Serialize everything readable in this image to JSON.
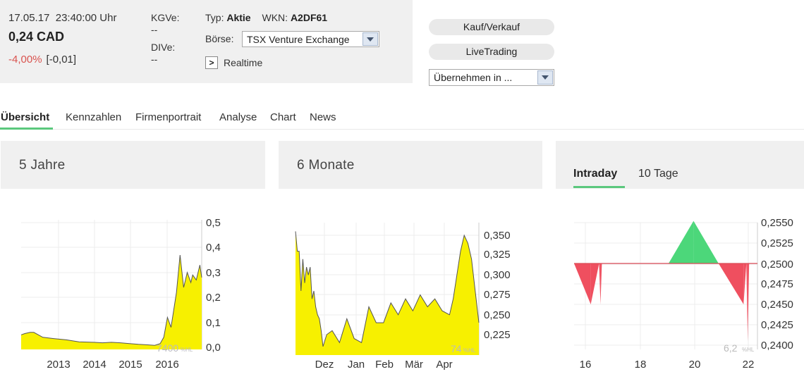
{
  "quote": {
    "date": "17.05.17",
    "time": "23:40:00 Uhr",
    "price": "0,24 CAD",
    "change_pct": "-4,00%",
    "change_abs": "[-0,01]",
    "kgve_label": "KGVe:",
    "kgve_value": "--",
    "dive_label": "DIVe:",
    "dive_value": "--",
    "typ_label": "Typ:",
    "typ_value": "Aktie",
    "wkn_label": "WKN:",
    "wkn_value": "A2DF61",
    "boerse_label": "Börse:",
    "boerse_value": "TSX Venture Exchange",
    "realtime_label": "Realtime"
  },
  "actions": {
    "kauf_label": "Kauf/Verkauf",
    "live_label": "LiveTrading",
    "uebernehmen_label": "Übernehmen in ..."
  },
  "tabs": [
    {
      "label": "Übersicht",
      "active": true
    },
    {
      "label": "Kennzahlen"
    },
    {
      "label": "Firmenportrait"
    },
    {
      "label": "Analyse"
    },
    {
      "label": "Chart"
    },
    {
      "label": "News"
    }
  ],
  "panels": {
    "five_years": {
      "title": "5 Jahre"
    },
    "six_months": {
      "title": "6 Monate"
    },
    "intraday": {
      "tab_intraday": "Intraday",
      "tab_10tage": "10 Tage"
    }
  },
  "colors": {
    "accent": "#5bc87d",
    "area": "#f7f000",
    "negative": "#d9534f",
    "up": "#4cd77a",
    "down": "#ef4f5f"
  },
  "chart_data": [
    {
      "type": "area",
      "title": "5 Jahre",
      "x_ticks": [
        "2013",
        "2014",
        "2015",
        "2016"
      ],
      "y_ticks": [
        "0,5",
        "0,4",
        "0,3",
        "0,2",
        "0,1",
        "0,0"
      ],
      "ylim": [
        0,
        0.5
      ],
      "watermark": "7400",
      "watermark_unit": "%HL",
      "x": [
        0,
        0.02,
        0.05,
        0.07,
        0.12,
        0.18,
        0.25,
        0.32,
        0.4,
        0.45,
        0.5,
        0.55,
        0.6,
        0.65,
        0.7,
        0.74,
        0.77,
        0.79,
        0.81,
        0.83,
        0.86,
        0.88,
        0.9,
        0.92,
        0.94,
        0.95,
        0.97,
        0.99,
        1.0
      ],
      "values": [
        0.05,
        0.055,
        0.06,
        0.06,
        0.04,
        0.035,
        0.03,
        0.022,
        0.02,
        0.018,
        0.02,
        0.018,
        0.015,
        0.012,
        0.01,
        0.008,
        0.015,
        0.04,
        0.12,
        0.08,
        0.22,
        0.37,
        0.24,
        0.3,
        0.26,
        0.29,
        0.27,
        0.33,
        0.28
      ]
    },
    {
      "type": "area",
      "title": "6 Monate",
      "x_ticks": [
        "Dez",
        "Jan",
        "Feb",
        "Mär",
        "Apr"
      ],
      "y_ticks": [
        "0,350",
        "0,325",
        "0,300",
        "0,275",
        "0,250",
        "0,225"
      ],
      "ylim": [
        0.205,
        0.365
      ],
      "watermark": "74",
      "watermark_unit": "%HL",
      "x": [
        0,
        0.01,
        0.02,
        0.03,
        0.04,
        0.05,
        0.06,
        0.07,
        0.08,
        0.09,
        0.1,
        0.11,
        0.12,
        0.13,
        0.14,
        0.15,
        0.17,
        0.2,
        0.24,
        0.28,
        0.32,
        0.36,
        0.4,
        0.44,
        0.48,
        0.52,
        0.56,
        0.6,
        0.64,
        0.68,
        0.72,
        0.76,
        0.8,
        0.84,
        0.86,
        0.88,
        0.9,
        0.92,
        0.94,
        0.96,
        0.98,
        1.0
      ],
      "values": [
        0.355,
        0.33,
        0.33,
        0.28,
        0.32,
        0.29,
        0.31,
        0.3,
        0.31,
        0.27,
        0.28,
        0.26,
        0.25,
        0.245,
        0.23,
        0.21,
        0.225,
        0.23,
        0.215,
        0.245,
        0.22,
        0.215,
        0.26,
        0.24,
        0.24,
        0.265,
        0.25,
        0.27,
        0.255,
        0.275,
        0.26,
        0.27,
        0.255,
        0.25,
        0.27,
        0.3,
        0.33,
        0.35,
        0.34,
        0.32,
        0.28,
        0.24
      ]
    },
    {
      "type": "area",
      "title": "Intraday",
      "x_ticks": [
        "16",
        "18",
        "20",
        "22"
      ],
      "y_ticks": [
        "0,2550",
        "0,2525",
        "0,2500",
        "0,2475",
        "0,2450",
        "0,2425",
        "0,2400"
      ],
      "ylim": [
        0.2395,
        0.2555
      ],
      "baseline": 0.25,
      "watermark": "6,2",
      "watermark_unit": "%HL",
      "x": [
        15.6,
        16.2,
        16.5,
        16.55,
        16.6,
        16.65,
        19.0,
        19.9,
        20.8,
        21.7,
        21.8,
        21.85,
        21.9,
        22.0
      ],
      "values": [
        0.25,
        0.245,
        0.25,
        0.245,
        0.25,
        0.25,
        0.25,
        0.2552,
        0.25,
        0.245,
        0.25,
        0.2405,
        0.25,
        0.25
      ]
    }
  ]
}
